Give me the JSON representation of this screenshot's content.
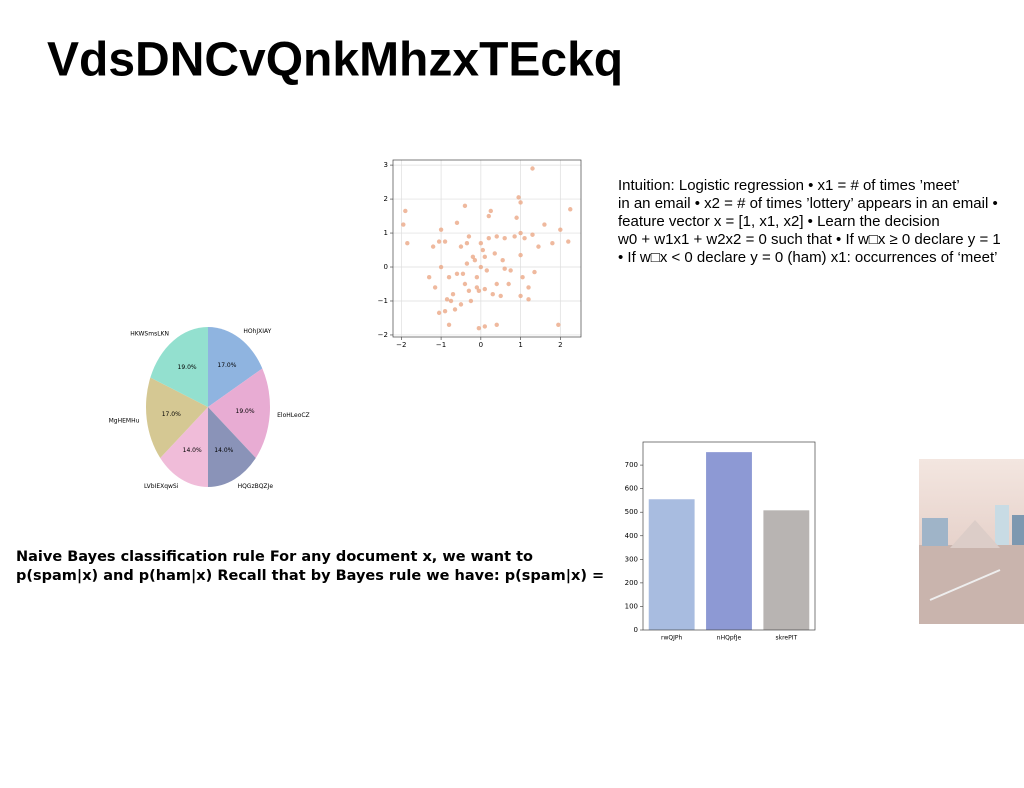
{
  "title": "VdsDNCvQnkMhzxTEckq",
  "right_text": [
    "Intuition: Logistic regression • x1 = # of times ’meet’",
    "in an email • x2 = # of times ’lottery’ appears in an email •",
    "feature vector x = [1, x1, x2] • Learn the decision",
    "w0 + w1x1 + w2x2 = 0 such that • If w□x ≥ 0 declare y = 1",
    "• If w□x < 0 declare y = 0 (ham) x1: occurrences of ‘meet’"
  ],
  "left_text": [
    "Naive Bayes classification rule For any document x, we want to",
    "p(spam|x) and p(ham|x) Recall that by Bayes rule we have: p(spam|x) ="
  ],
  "chart_data": [
    {
      "type": "scatter",
      "color": "#e9a27e",
      "grid": true,
      "x": [
        1.3,
        -1.9,
        -1.95,
        -1.85,
        -1.0,
        -0.4,
        -0.9,
        -1.05,
        -1.2,
        -0.6,
        -0.5,
        -0.3,
        -0.35,
        0.25,
        0.2,
        0.95,
        1.0,
        1.3,
        0.9,
        1.6,
        2.25,
        2.0,
        2.2,
        1.8,
        1.45,
        1.0,
        0.85,
        1.1,
        0.6,
        0.4,
        0.2,
        0.0,
        -0.2,
        -0.35,
        -0.15,
        0.05,
        0.35,
        0.55,
        0.6,
        0.75,
        1.0,
        1.05,
        1.35,
        1.2,
        1.0,
        1.2,
        0.7,
        0.4,
        0.3,
        0.1,
        -0.1,
        -0.05,
        -0.3,
        -0.4,
        -0.45,
        -0.6,
        -0.8,
        -1.0,
        -1.3,
        -1.15,
        -0.85,
        -0.75,
        -0.5,
        -0.25,
        -0.65,
        -0.9,
        -1.05,
        -0.8,
        -0.05,
        0.1,
        0.4,
        1.95,
        0.5,
        -0.1,
        0.15,
        0.0,
        0.1,
        -0.7
      ],
      "values": [
        2.9,
        1.65,
        1.25,
        0.7,
        1.1,
        1.8,
        0.75,
        0.75,
        0.6,
        1.3,
        0.6,
        0.9,
        0.7,
        1.65,
        1.5,
        2.05,
        1.9,
        0.95,
        1.45,
        1.25,
        1.7,
        1.1,
        0.75,
        0.7,
        0.6,
        1.0,
        0.9,
        0.85,
        0.85,
        0.9,
        0.85,
        0.7,
        0.3,
        0.1,
        0.2,
        0.5,
        0.4,
        0.2,
        -0.05,
        -0.1,
        0.35,
        -0.3,
        -0.15,
        -0.6,
        -0.85,
        -0.95,
        -0.5,
        -0.5,
        -0.8,
        -0.65,
        -0.6,
        -0.7,
        -0.7,
        -0.5,
        -0.2,
        -0.2,
        -0.3,
        0.0,
        -0.3,
        -0.6,
        -0.95,
        -1.0,
        -1.1,
        -1.0,
        -1.25,
        -1.3,
        -1.35,
        -1.7,
        -1.8,
        -1.75,
        -1.7,
        -1.7,
        -0.85,
        -0.3,
        -0.1,
        0.0,
        0.3,
        -0.8
      ],
      "xlim": [
        -2.21,
        2.52
      ],
      "xticks": [
        {
          "value": -2,
          "label": "−2"
        },
        {
          "value": -1,
          "label": "−1"
        },
        0,
        1,
        2
      ],
      "ylim": [
        -2.06,
        3.15
      ],
      "yticks": [
        {
          "value": -2,
          "label": "−2"
        },
        {
          "value": -1,
          "label": "−1"
        },
        0,
        1,
        2,
        3
      ]
    },
    {
      "type": "pie",
      "categories": [
        "HOhJXIAY",
        "EloHLeoCZ",
        "HQGzBQZJe",
        "LVbIEXqwSi",
        "MgHEMHu",
        "HKWSmsLKN"
      ],
      "values": [
        17,
        19,
        14,
        14,
        17,
        19
      ],
      "value_labels": [
        "17.0%",
        "19.0%",
        "14.0%",
        "14.0%",
        "17.0%",
        "19.0%"
      ],
      "colors": [
        "#8fb4e0",
        "#e8acd3",
        "#8a93b8",
        "#f0bcd9",
        "#d5c893",
        "#93e0cf"
      ]
    },
    {
      "type": "bar",
      "categories": [
        "rwQJPh",
        "nHQpfJe",
        "skrePIT"
      ],
      "values": [
        555,
        755,
        508
      ],
      "colors": [
        "#a8bce0",
        "#8d99d4",
        "#b8b4b2"
      ],
      "ylim": [
        0,
        798
      ],
      "yticks": [
        0,
        100,
        200,
        300,
        400,
        500,
        600,
        700
      ]
    }
  ]
}
